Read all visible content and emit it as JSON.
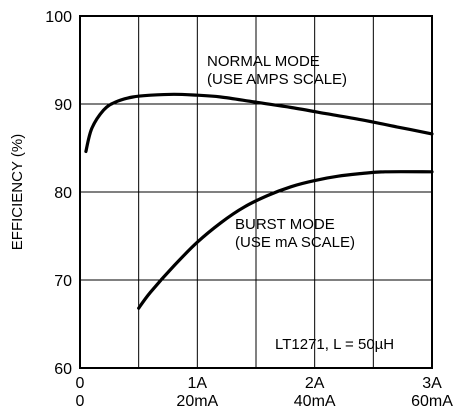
{
  "chart_data": {
    "type": "line",
    "title": "",
    "xlabel": "",
    "ylabel": "EFFICIENCY (%)",
    "ylim": [
      60,
      100
    ],
    "xlim": [
      0,
      3
    ],
    "grid": true,
    "y_ticks": [
      "60",
      "70",
      "80",
      "90",
      "100"
    ],
    "x_ticks_top": [
      "0",
      "1A",
      "2A",
      "3A"
    ],
    "x_ticks_bottom": [
      "0",
      "20mA",
      "40mA",
      "60mA"
    ],
    "series": [
      {
        "label_lines": [
          "NORMAL MODE",
          "(USE AMPS SCALE)"
        ],
        "x": [
          0.05,
          0.1,
          0.2,
          0.3,
          0.45,
          0.6,
          0.8,
          1.0,
          1.2,
          1.5,
          1.8,
          2.1,
          2.4,
          2.7,
          3.0
        ],
        "y": [
          84.6,
          87.2,
          89.3,
          90.2,
          90.8,
          91.0,
          91.1,
          91.0,
          90.8,
          90.2,
          89.6,
          88.9,
          88.2,
          87.4,
          86.6
        ]
      },
      {
        "label_lines": [
          "BURST MODE",
          "(USE mA SCALE)"
        ],
        "x": [
          0.5,
          0.6,
          0.8,
          1.0,
          1.2,
          1.4,
          1.6,
          1.8,
          2.0,
          2.2,
          2.4,
          2.6,
          3.0
        ],
        "y": [
          66.8,
          68.6,
          71.6,
          74.3,
          76.5,
          78.3,
          79.6,
          80.6,
          81.3,
          81.8,
          82.1,
          82.3,
          82.3
        ]
      }
    ],
    "annotation": "LT1271, L = 50µH"
  }
}
